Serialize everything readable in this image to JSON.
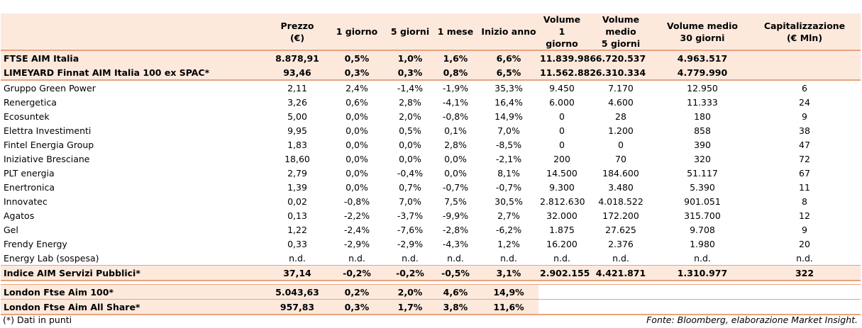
{
  "headers": [
    {
      "l1": "",
      "l2": ""
    },
    {
      "l1": "Prezzo",
      "l2": "(€)"
    },
    {
      "l1": "1 giorno",
      "l2": ""
    },
    {
      "l1": "5 giorni",
      "l2": ""
    },
    {
      "l1": "1 mese",
      "l2": ""
    },
    {
      "l1": "Inizio anno",
      "l2": ""
    },
    {
      "l1": "Volume 1",
      "l2": "giorno"
    },
    {
      "l1": "Volume medio",
      "l2": "5 giorni"
    },
    {
      "l1": "Volume medio",
      "l2": "30 giorni"
    },
    {
      "l1": "Capitalizzazione",
      "l2": "(€ Mln)"
    }
  ],
  "index_rows": [
    [
      "FTSE AIM Italia",
      "8.878,91",
      "0,5%",
      "1,0%",
      "1,6%",
      "6,6%",
      "11.839.986",
      "6.720.537",
      "4.963.517",
      ""
    ],
    [
      "LIMEYARD Finnat AIM Italia 100 ex SPAC*",
      "93,46",
      "0,3%",
      "0,3%",
      "0,8%",
      "6,5%",
      "11.562.882",
      "6.310.334",
      "4.779.990",
      ""
    ]
  ],
  "rows": [
    [
      "Gruppo Green Power",
      "2,11",
      "2,4%",
      "-1,4%",
      "-1,9%",
      "35,3%",
      "9.450",
      "7.170",
      "12.950",
      "6"
    ],
    [
      "Renergetica",
      "3,26",
      "0,6%",
      "2,8%",
      "-4,1%",
      "16,4%",
      "6.000",
      "4.600",
      "11.333",
      "24"
    ],
    [
      "Ecosuntek",
      "5,00",
      "0,0%",
      "2,0%",
      "-0,8%",
      "14,9%",
      "0",
      "28",
      "180",
      "9"
    ],
    [
      "Elettra Investimenti",
      "9,95",
      "0,0%",
      "0,5%",
      "0,1%",
      "7,0%",
      "0",
      "1.200",
      "858",
      "38"
    ],
    [
      "Fintel Energia Group",
      "1,83",
      "0,0%",
      "0,0%",
      "2,8%",
      "-8,5%",
      "0",
      "0",
      "390",
      "47"
    ],
    [
      "Iniziative Bresciane",
      "18,60",
      "0,0%",
      "0,0%",
      "0,0%",
      "-2,1%",
      "200",
      "70",
      "320",
      "72"
    ],
    [
      "PLT energia",
      "2,79",
      "0,0%",
      "-0,4%",
      "0,0%",
      "8,1%",
      "14.500",
      "184.600",
      "51.117",
      "67"
    ],
    [
      "Enertronica",
      "1,39",
      "0,0%",
      "0,7%",
      "-0,7%",
      "-0,7%",
      "9.300",
      "3.480",
      "5.390",
      "11"
    ],
    [
      "Innovatec",
      "0,02",
      "-0,8%",
      "7,0%",
      "7,5%",
      "30,5%",
      "2.812.630",
      "4.018.522",
      "901.051",
      "8"
    ],
    [
      "Agatos",
      "0,13",
      "-2,2%",
      "-3,7%",
      "-9,9%",
      "2,7%",
      "32.000",
      "172.200",
      "315.700",
      "12"
    ],
    [
      "Gel",
      "1,22",
      "-2,4%",
      "-7,6%",
      "-2,8%",
      "-6,2%",
      "1.875",
      "27.625",
      "9.708",
      "9"
    ],
    [
      "Frendy Energy",
      "0,33",
      "-2,9%",
      "-2,9%",
      "-4,3%",
      "1,2%",
      "16.200",
      "2.376",
      "1.980",
      "20"
    ],
    [
      "Energy Lab (sospesa)",
      "n.d.",
      "n.d.",
      "n.d.",
      "n.d.",
      "n.d.",
      "n.d.",
      "n.d.",
      "n.d.",
      "n.d."
    ]
  ],
  "sector_row": [
    "Indice AIM Servizi Pubblici*",
    "37,14",
    "-0,2%",
    "-0,2%",
    "-0,5%",
    "3,1%",
    "2.902.155",
    "4.421.871",
    "1.310.977",
    "322"
  ],
  "london_rows": [
    [
      "London Ftse Aim 100*",
      "5.043,63",
      "0,2%",
      "2,0%",
      "4,6%",
      "14,9%",
      "",
      "",
      "",
      ""
    ],
    [
      "London Ftse Aim All Share*",
      "957,83",
      "0,3%",
      "1,7%",
      "3,8%",
      "11,6%",
      "",
      "",
      "",
      ""
    ]
  ],
  "footer": {
    "note": "(*) Dati in punti",
    "source": "Fonte: Bloomberg, elaborazione Market Insight."
  }
}
